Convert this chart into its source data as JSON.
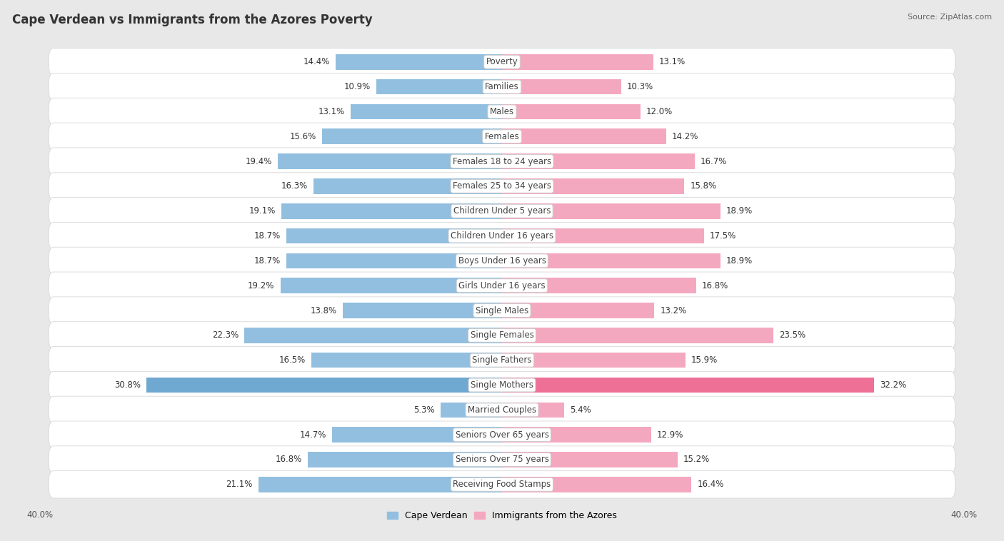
{
  "title": "Cape Verdean vs Immigrants from the Azores Poverty",
  "source": "Source: ZipAtlas.com",
  "categories": [
    "Poverty",
    "Families",
    "Males",
    "Females",
    "Females 18 to 24 years",
    "Females 25 to 34 years",
    "Children Under 5 years",
    "Children Under 16 years",
    "Boys Under 16 years",
    "Girls Under 16 years",
    "Single Males",
    "Single Females",
    "Single Fathers",
    "Single Mothers",
    "Married Couples",
    "Seniors Over 65 years",
    "Seniors Over 75 years",
    "Receiving Food Stamps"
  ],
  "cape_verdean": [
    14.4,
    10.9,
    13.1,
    15.6,
    19.4,
    16.3,
    19.1,
    18.7,
    18.7,
    19.2,
    13.8,
    22.3,
    16.5,
    30.8,
    5.3,
    14.7,
    16.8,
    21.1
  ],
  "azores": [
    13.1,
    10.3,
    12.0,
    14.2,
    16.7,
    15.8,
    18.9,
    17.5,
    18.9,
    16.8,
    13.2,
    23.5,
    15.9,
    32.2,
    5.4,
    12.9,
    15.2,
    16.4
  ],
  "cape_verdean_color": "#92bfdf",
  "azores_color": "#f4a8bf",
  "single_mothers_cape_color": "#6fa8d0",
  "single_mothers_azores_color": "#ee7096",
  "page_bg": "#e8e8e8",
  "row_bg": "#ffffff",
  "row_edge": "#d8d8d8",
  "xlim": 40.0,
  "bar_height": 0.62,
  "font_size_labels": 8.5,
  "font_size_values": 8.5,
  "font_size_title": 12,
  "font_size_source": 8,
  "font_size_axis": 8.5,
  "legend_blue_label": "Cape Verdean",
  "legend_pink_label": "Immigrants from the Azores",
  "title_color": "#333333",
  "source_color": "#666666",
  "value_color": "#333333",
  "label_color": "#444444"
}
